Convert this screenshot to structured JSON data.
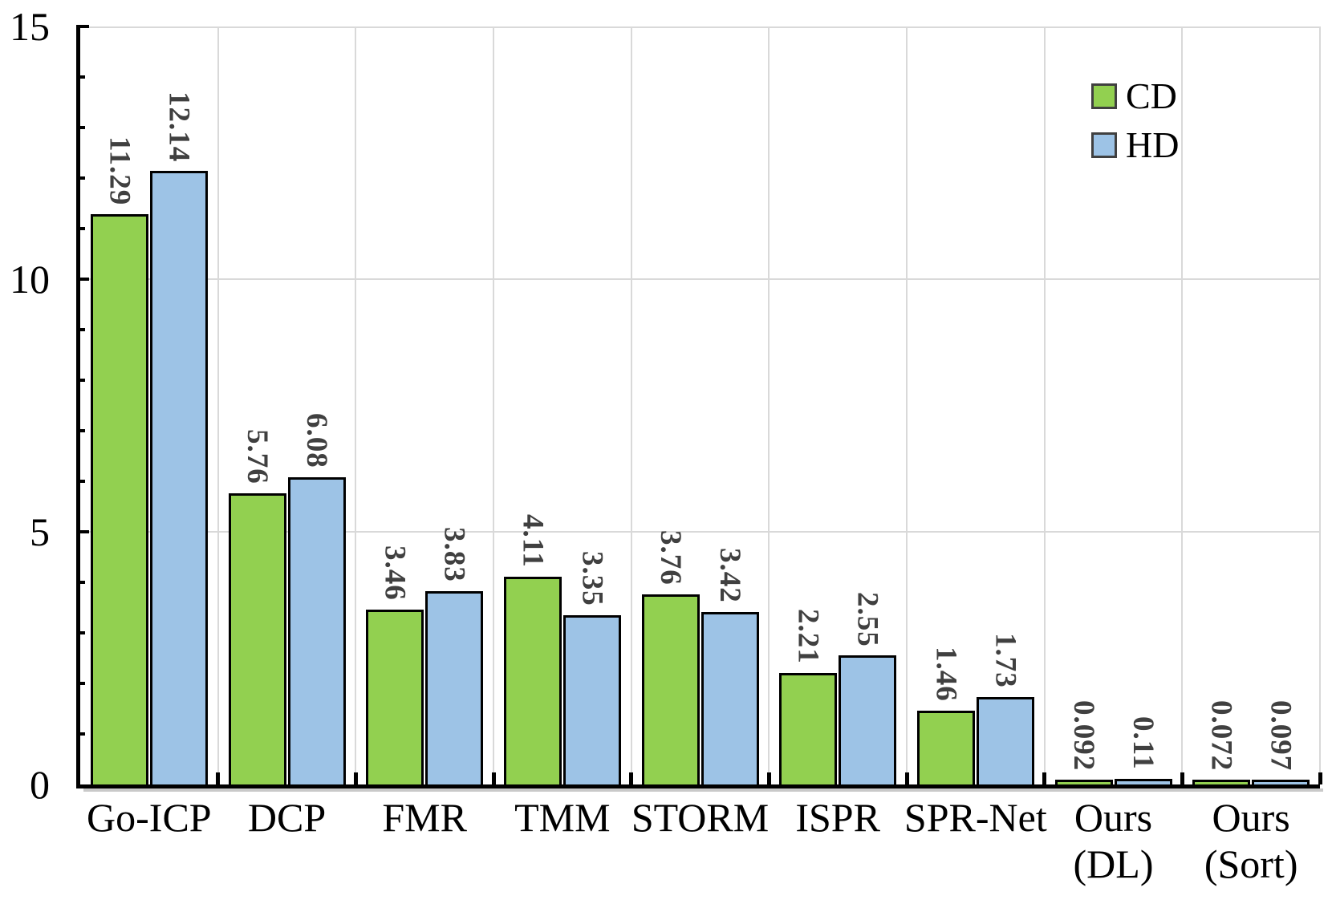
{
  "chart_data": {
    "type": "bar",
    "title": "",
    "xlabel": "",
    "ylabel": "",
    "categories": [
      "Go-ICP",
      "DCP",
      "FMR",
      "TMM",
      "STORM",
      "ISPR",
      "SPR-Net",
      "Ours (DL)",
      "Ours (Sort)"
    ],
    "category_lines": [
      [
        "Go-ICP"
      ],
      [
        "DCP"
      ],
      [
        "FMR"
      ],
      [
        "TMM"
      ],
      [
        "STORM"
      ],
      [
        "ISPR"
      ],
      [
        "SPR-Net"
      ],
      [
        "Ours",
        "(DL)"
      ],
      [
        "Ours",
        "(Sort)"
      ]
    ],
    "series": [
      {
        "name": "CD",
        "color": "#92D050",
        "values": [
          11.29,
          5.76,
          3.46,
          4.11,
          3.76,
          2.21,
          1.46,
          0.092,
          0.072
        ],
        "labels": [
          "11.29",
          "5.76",
          "3.46",
          "4.11",
          "3.76",
          "2.21",
          "1.46",
          "0.092",
          "0.072"
        ]
      },
      {
        "name": "HD",
        "color": "#9DC3E6",
        "values": [
          12.14,
          6.08,
          3.83,
          3.35,
          3.42,
          2.55,
          1.73,
          0.11,
          0.097
        ],
        "labels": [
          "12.14",
          "6.08",
          "3.83",
          "3.35",
          "3.42",
          "2.55",
          "1.73",
          "0.11",
          "0.097"
        ]
      }
    ],
    "ylim": [
      0,
      15
    ],
    "yticks": [
      0,
      5,
      10,
      15
    ],
    "ytick_labels": [
      "0",
      "5",
      "10",
      "15"
    ],
    "y_minor_unit": 1,
    "grid": true,
    "legend_position": "top-right",
    "value_label_color": "#404040",
    "bar_border_color": "#000000",
    "axis_color": "#000000",
    "gridline_color": "#D9D9D9"
  }
}
